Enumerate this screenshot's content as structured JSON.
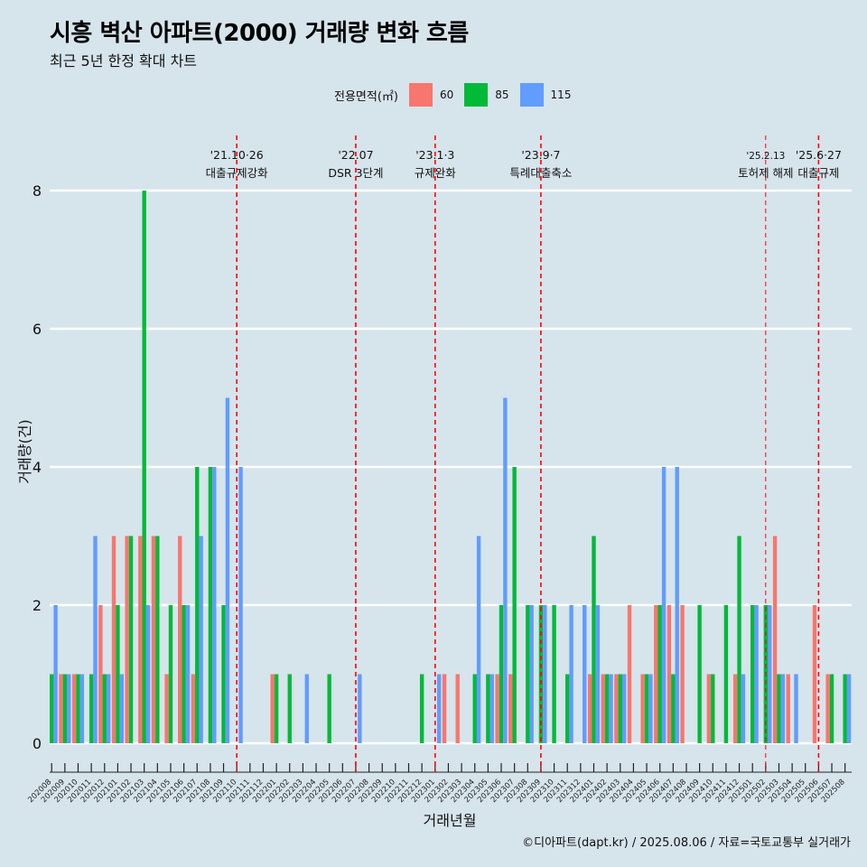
{
  "title": "시흥 벽산 아파트(2000) 거래량 변화 흐름",
  "subtitle": "최근 5년 한정 확대 차트",
  "caption": "©디아파트(dapt.kr) / 2025.08.06 / 자료=국토교통부 실거래가",
  "legend": {
    "title": "전용면적(㎡)",
    "items": [
      {
        "label": "60",
        "color": "#f8766d"
      },
      {
        "label": "85",
        "color": "#00ba38"
      },
      {
        "label": "115",
        "color": "#619cff"
      }
    ]
  },
  "chart_data": {
    "type": "bar",
    "xlabel": "거래년월",
    "ylabel": "거래량(건)",
    "ylim": [
      0,
      8.6
    ],
    "yticks": [
      0,
      2,
      4,
      6,
      8
    ],
    "grid": "horizontal",
    "legend_position": "top",
    "categories": [
      "202008",
      "202009",
      "202010",
      "202011",
      "202012",
      "202101",
      "202102",
      "202103",
      "202104",
      "202105",
      "202106",
      "202107",
      "202108",
      "202109",
      "202110",
      "202111",
      "202112",
      "202201",
      "202202",
      "202203",
      "202204",
      "202205",
      "202206",
      "202207",
      "202208",
      "202209",
      "202210",
      "202211",
      "202212",
      "202301",
      "202302",
      "202303",
      "202304",
      "202305",
      "202306",
      "202307",
      "202308",
      "202309",
      "202310",
      "202311",
      "202312",
      "202401",
      "202402",
      "202403",
      "202404",
      "202405",
      "202406",
      "202407",
      "202408",
      "202409",
      "202410",
      "202411",
      "202412",
      "202501",
      "202502",
      "202503",
      "202504",
      "202505",
      "202506",
      "202507",
      "202508"
    ],
    "series": [
      {
        "name": "60",
        "color": "#f8766d",
        "values": [
          0,
          1,
          1,
          0,
          2,
          3,
          3,
          3,
          3,
          1,
          3,
          1,
          0,
          0,
          0,
          0,
          0,
          1,
          0,
          0,
          0,
          0,
          0,
          0,
          0,
          0,
          0,
          0,
          0,
          0,
          1,
          1,
          0,
          0,
          1,
          1,
          0,
          0,
          0,
          0,
          0,
          1,
          1,
          1,
          2,
          1,
          2,
          2,
          2,
          0,
          1,
          0,
          1,
          0,
          0,
          3,
          1,
          0,
          2,
          1,
          0
        ]
      },
      {
        "name": "85",
        "color": "#00ba38",
        "values": [
          1,
          1,
          1,
          1,
          1,
          2,
          3,
          8,
          3,
          2,
          2,
          4,
          4,
          2,
          0,
          0,
          0,
          1,
          1,
          0,
          0,
          1,
          0,
          0,
          0,
          0,
          0,
          0,
          1,
          0,
          0,
          0,
          1,
          1,
          2,
          4,
          2,
          2,
          2,
          1,
          0,
          3,
          1,
          1,
          0,
          1,
          2,
          1,
          0,
          2,
          1,
          2,
          3,
          2,
          2,
          1,
          0,
          0,
          0,
          1,
          1
        ]
      },
      {
        "name": "115",
        "color": "#619cff",
        "values": [
          2,
          1,
          1,
          3,
          1,
          1,
          0,
          2,
          0,
          0,
          2,
          3,
          4,
          5,
          4,
          0,
          0,
          0,
          0,
          1,
          0,
          0,
          0,
          1,
          0,
          0,
          0,
          0,
          0,
          1,
          0,
          0,
          3,
          1,
          5,
          0,
          2,
          2,
          0,
          2,
          2,
          2,
          1,
          1,
          0,
          1,
          4,
          4,
          0,
          0,
          0,
          0,
          1,
          2,
          2,
          1,
          1,
          0,
          0,
          0,
          1
        ]
      }
    ],
    "annotations": [
      {
        "at": "202110",
        "date": "'21.10·26",
        "label": "대출규제강화"
      },
      {
        "at": "202207",
        "date": "'22.07",
        "label": "DSR 3단계"
      },
      {
        "at": "202301",
        "date": "'23.1·3",
        "label": "규제완화"
      },
      {
        "at": "202309",
        "date": "'23.9·7",
        "label": "특례대출축소"
      },
      {
        "at": "202502",
        "date": "'25.2.13",
        "label": "토허제 해제"
      },
      {
        "at": "202506",
        "date": "'25.6·27",
        "label": "대출규제"
      }
    ]
  }
}
